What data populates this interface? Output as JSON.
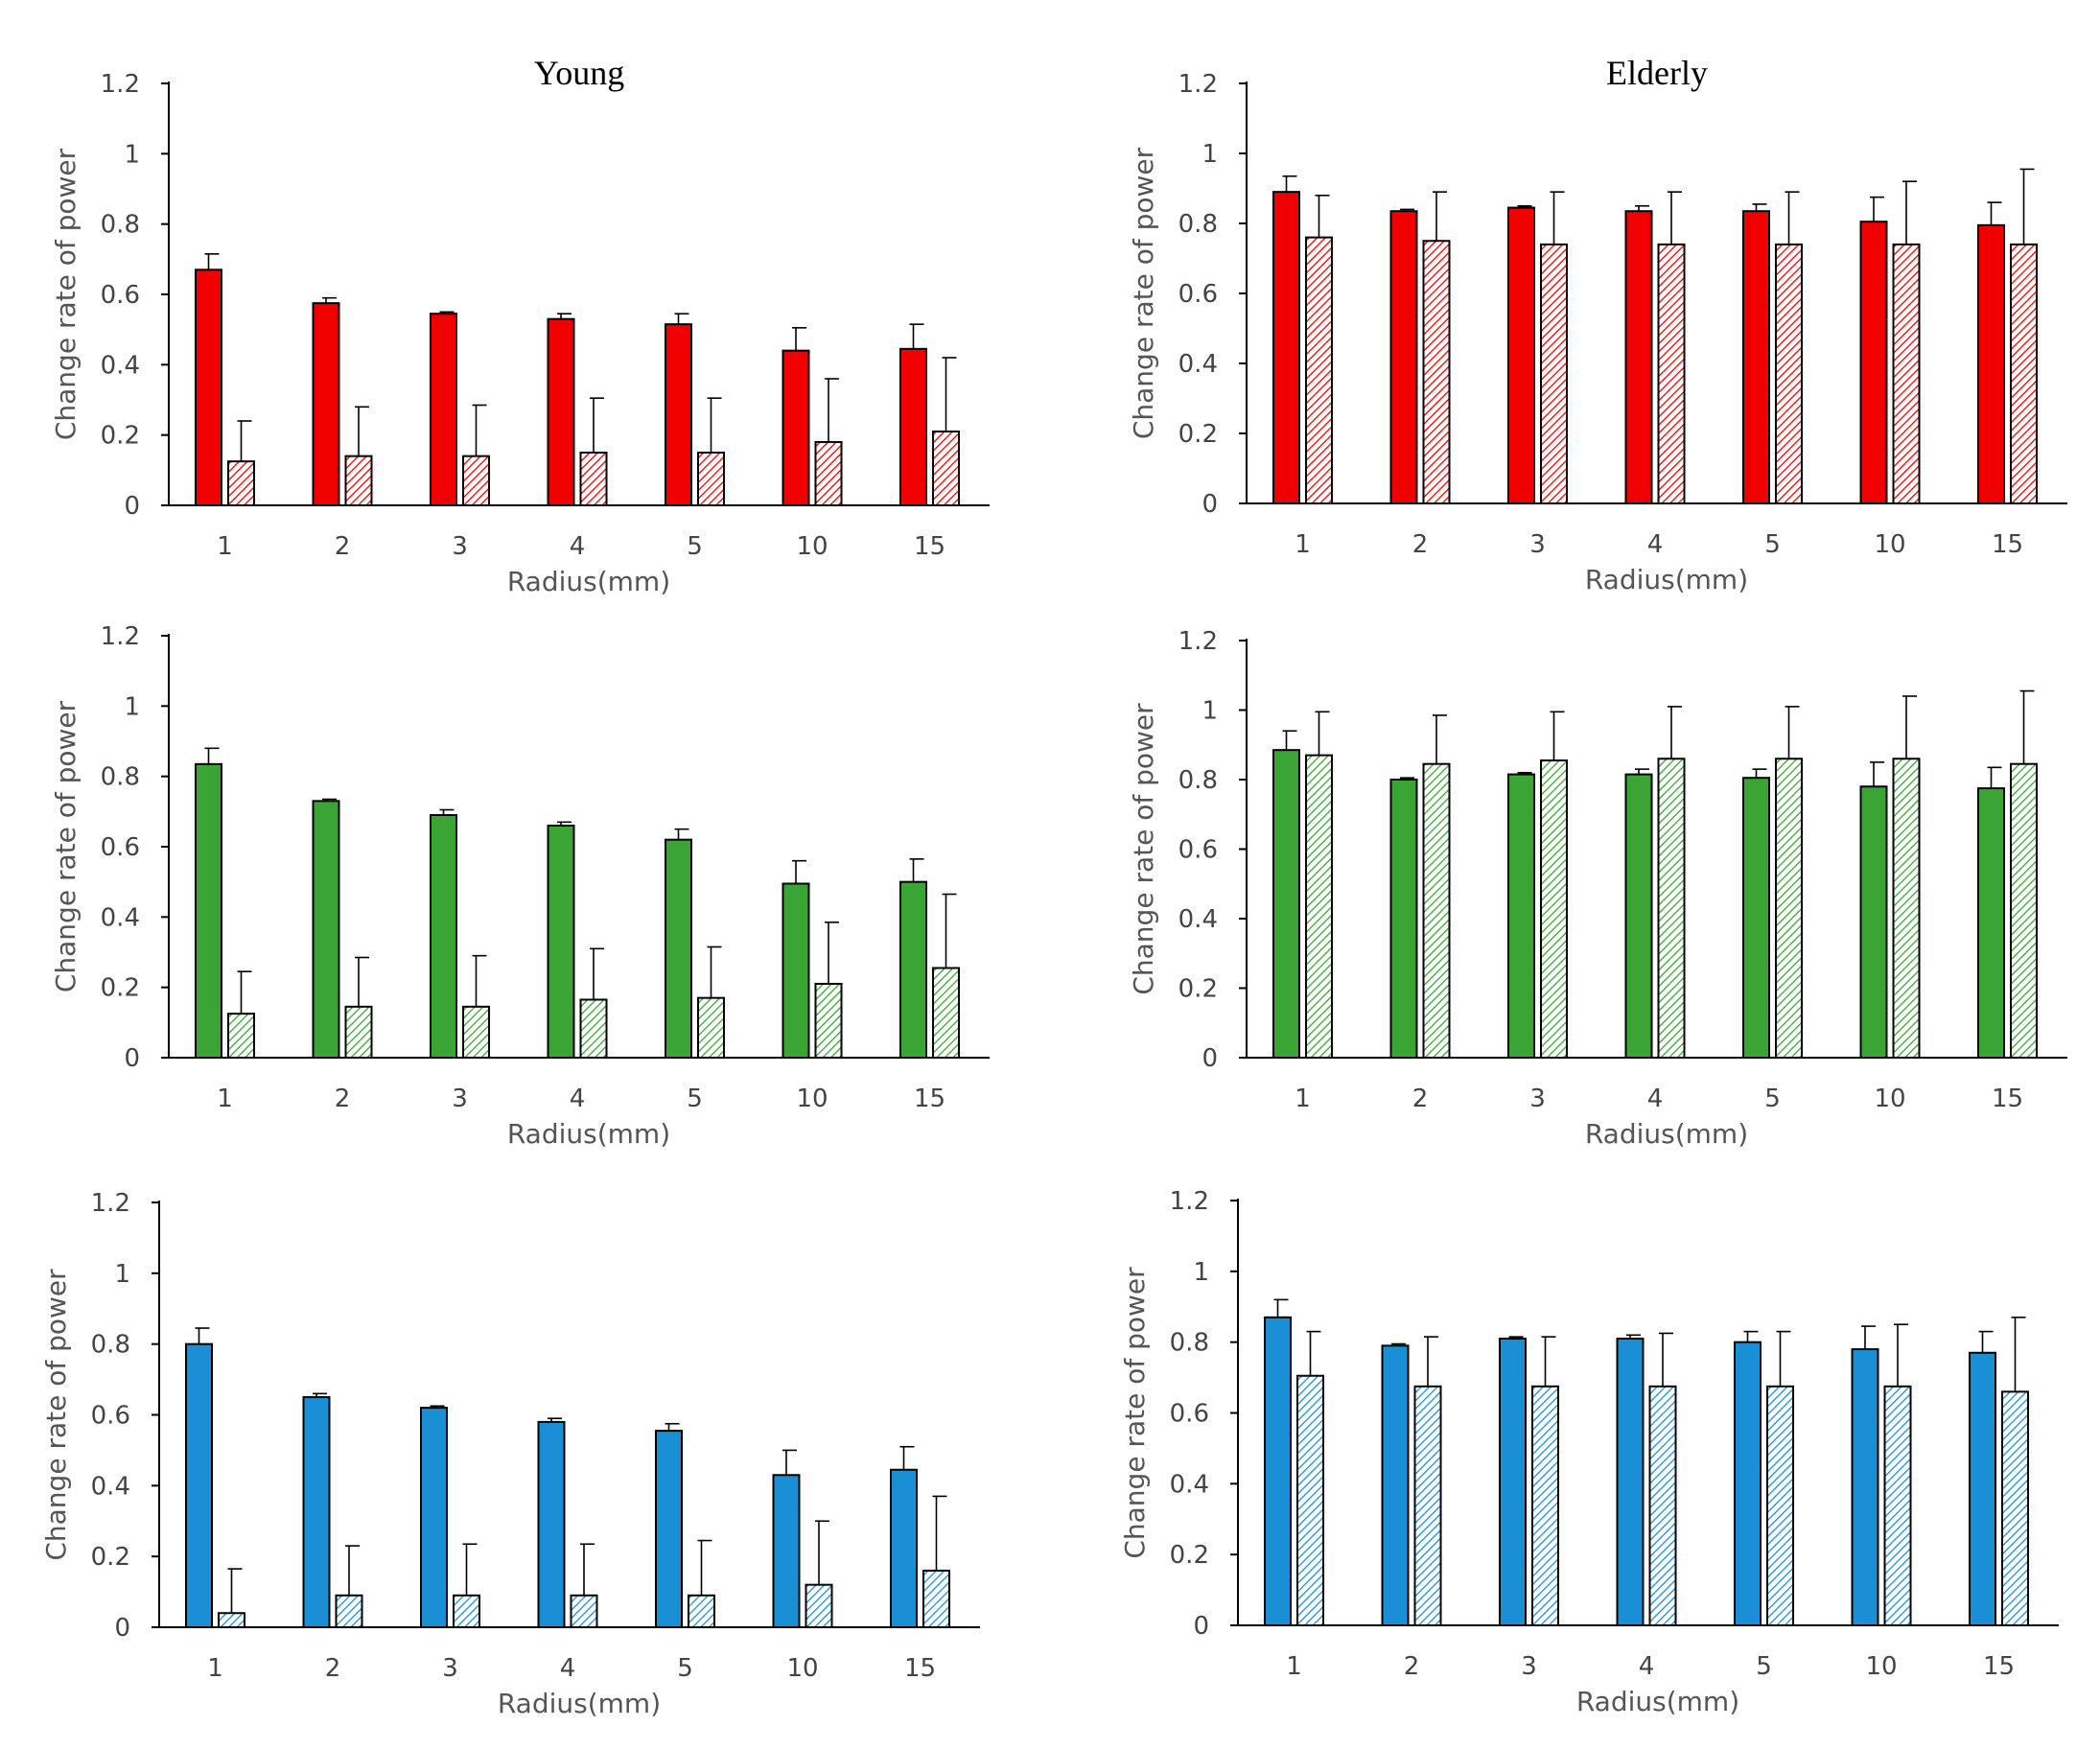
{
  "figure": {
    "titles": {
      "young": "Young",
      "elderly": "Elderly"
    }
  },
  "colors": {
    "red": "#f00000",
    "green": "#3aa535",
    "blue": "#1a8fd6",
    "outline": "#000000",
    "axis": "#000000",
    "tick_text": "#444444",
    "axis_title_text": "#555555"
  },
  "chart_data": [
    {
      "type": "bar",
      "group": "Young",
      "color": "red",
      "title": "Young",
      "xlabel": "Radius(mm)",
      "ylabel": "Change rate of power",
      "ylim": [
        0,
        1.2
      ],
      "yticks": [
        "0",
        "0.2",
        "0.4",
        "0.6",
        "0.8",
        "1",
        "1.2"
      ],
      "categories": [
        "1",
        "2",
        "3",
        "4",
        "5",
        "10",
        "15"
      ],
      "series": [
        {
          "name": "solid",
          "pattern": "solid",
          "values": [
            0.67,
            0.575,
            0.545,
            0.53,
            0.515,
            0.44,
            0.445
          ],
          "errors": [
            0.045,
            0.015,
            0.005,
            0.015,
            0.03,
            0.065,
            0.07
          ]
        },
        {
          "name": "hatched",
          "pattern": "hatched",
          "values": [
            0.125,
            0.14,
            0.14,
            0.15,
            0.15,
            0.18,
            0.21
          ],
          "errors": [
            0.115,
            0.14,
            0.145,
            0.155,
            0.155,
            0.18,
            0.21
          ]
        }
      ]
    },
    {
      "type": "bar",
      "group": "Elderly",
      "color": "red",
      "title": "Elderly",
      "xlabel": "Radius(mm)",
      "ylabel": "Change rate of power",
      "ylim": [
        0,
        1.2
      ],
      "yticks": [
        "0",
        "0.2",
        "0.4",
        "0.6",
        "0.8",
        "1",
        "1.2"
      ],
      "categories": [
        "1",
        "2",
        "3",
        "4",
        "5",
        "10",
        "15"
      ],
      "series": [
        {
          "name": "solid",
          "pattern": "solid",
          "values": [
            0.89,
            0.835,
            0.845,
            0.835,
            0.835,
            0.805,
            0.795
          ],
          "errors": [
            0.045,
            0.005,
            0.005,
            0.015,
            0.02,
            0.07,
            0.065
          ]
        },
        {
          "name": "hatched",
          "pattern": "hatched",
          "values": [
            0.76,
            0.75,
            0.74,
            0.74,
            0.74,
            0.74,
            0.74
          ],
          "errors": [
            0.12,
            0.14,
            0.15,
            0.15,
            0.15,
            0.18,
            0.215
          ]
        }
      ]
    },
    {
      "type": "bar",
      "group": "Young",
      "color": "green",
      "title": "",
      "xlabel": "Radius(mm)",
      "ylabel": "Change rate of power",
      "ylim": [
        0,
        1.2
      ],
      "yticks": [
        "0",
        "0.2",
        "0.4",
        "0.6",
        "0.8",
        "1",
        "1.2"
      ],
      "categories": [
        "1",
        "2",
        "3",
        "4",
        "5",
        "10",
        "15"
      ],
      "series": [
        {
          "name": "solid",
          "pattern": "solid",
          "values": [
            0.835,
            0.73,
            0.69,
            0.66,
            0.62,
            0.495,
            0.5
          ],
          "errors": [
            0.045,
            0.005,
            0.015,
            0.01,
            0.03,
            0.065,
            0.065
          ]
        },
        {
          "name": "hatched",
          "pattern": "hatched",
          "values": [
            0.125,
            0.145,
            0.145,
            0.165,
            0.17,
            0.21,
            0.255
          ],
          "errors": [
            0.12,
            0.14,
            0.145,
            0.145,
            0.145,
            0.175,
            0.21
          ]
        }
      ]
    },
    {
      "type": "bar",
      "group": "Elderly",
      "color": "green",
      "title": "",
      "xlabel": "Radius(mm)",
      "ylabel": "Change rate of power",
      "ylim": [
        0,
        1.2
      ],
      "yticks": [
        "0",
        "0.2",
        "0.4",
        "0.6",
        "0.8",
        "1",
        "1.2"
      ],
      "categories": [
        "1",
        "2",
        "3",
        "4",
        "5",
        "10",
        "15"
      ],
      "series": [
        {
          "name": "solid",
          "pattern": "solid",
          "values": [
            0.885,
            0.8,
            0.815,
            0.815,
            0.805,
            0.78,
            0.775
          ],
          "errors": [
            0.055,
            0.005,
            0.005,
            0.015,
            0.025,
            0.07,
            0.06
          ]
        },
        {
          "name": "hatched",
          "pattern": "hatched",
          "values": [
            0.87,
            0.845,
            0.855,
            0.86,
            0.86,
            0.86,
            0.845
          ],
          "errors": [
            0.125,
            0.14,
            0.14,
            0.15,
            0.15,
            0.18,
            0.21
          ]
        }
      ]
    },
    {
      "type": "bar",
      "group": "Young",
      "color": "blue",
      "title": "",
      "xlabel": "Radius(mm)",
      "ylabel": "Change rate of power",
      "ylim": [
        0,
        1.2
      ],
      "yticks": [
        "0",
        "0.2",
        "0.4",
        "0.6",
        "0.8",
        "1",
        "1.2"
      ],
      "categories": [
        "1",
        "2",
        "3",
        "4",
        "5",
        "10",
        "15"
      ],
      "series": [
        {
          "name": "solid",
          "pattern": "solid",
          "values": [
            0.8,
            0.65,
            0.62,
            0.58,
            0.555,
            0.43,
            0.445
          ],
          "errors": [
            0.045,
            0.01,
            0.005,
            0.01,
            0.02,
            0.07,
            0.065
          ]
        },
        {
          "name": "hatched",
          "pattern": "hatched",
          "values": [
            0.04,
            0.09,
            0.09,
            0.09,
            0.09,
            0.12,
            0.16
          ],
          "errors": [
            0.125,
            0.14,
            0.145,
            0.145,
            0.155,
            0.18,
            0.21
          ]
        }
      ]
    },
    {
      "type": "bar",
      "group": "Elderly",
      "color": "blue",
      "title": "",
      "xlabel": "Radius(mm)",
      "ylabel": "Change rate of power",
      "ylim": [
        0,
        1.2
      ],
      "yticks": [
        "0",
        "0.2",
        "0.4",
        "0.6",
        "0.8",
        "1",
        "1.2"
      ],
      "categories": [
        "1",
        "2",
        "3",
        "4",
        "5",
        "10",
        "15"
      ],
      "series": [
        {
          "name": "solid",
          "pattern": "solid",
          "values": [
            0.87,
            0.79,
            0.81,
            0.81,
            0.8,
            0.78,
            0.77
          ],
          "errors": [
            0.05,
            0.005,
            0.005,
            0.01,
            0.03,
            0.065,
            0.06
          ]
        },
        {
          "name": "hatched",
          "pattern": "hatched",
          "values": [
            0.705,
            0.675,
            0.675,
            0.675,
            0.675,
            0.675,
            0.66
          ],
          "errors": [
            0.125,
            0.14,
            0.14,
            0.15,
            0.155,
            0.175,
            0.21
          ]
        }
      ]
    }
  ]
}
